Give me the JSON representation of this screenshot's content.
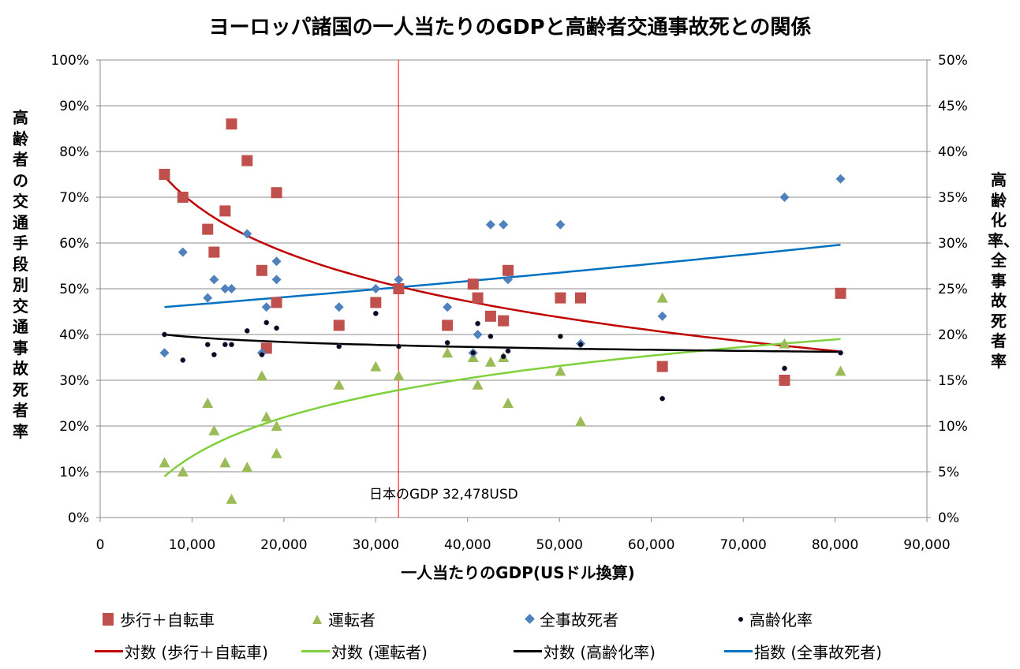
{
  "chart_data": {
    "type": "scatter",
    "title": "ヨーロッパ諸国の一人当たりのGDPと高齢者交通事故死との関係",
    "xlabel": "一人当たりのGDP(USドル換算)",
    "ylabel_left": "高齢者の交通手段別交通事故死者率",
    "ylabel_right": "高齢化率、全事故死者率",
    "xlim": [
      0,
      90000
    ],
    "ylim_left": [
      0,
      1.0
    ],
    "ylim_right": [
      0,
      0.5
    ],
    "x_ticks": [
      "0",
      "10,000",
      "20,000",
      "30,000",
      "40,000",
      "50,000",
      "60,000",
      "70,000",
      "80,000",
      "90,000"
    ],
    "x_tick_values": [
      0,
      10000,
      20000,
      30000,
      40000,
      50000,
      60000,
      70000,
      80000,
      90000
    ],
    "y_ticks_left": [
      "0%",
      "10%",
      "20%",
      "30%",
      "40%",
      "50%",
      "60%",
      "70%",
      "80%",
      "90%",
      "100%"
    ],
    "y_ticks_right": [
      "0%",
      "5%",
      "10%",
      "15%",
      "20%",
      "25%",
      "30%",
      "35%",
      "40%",
      "45%",
      "50%"
    ],
    "grid": true,
    "legend_position": "bottom",
    "reference_line": {
      "x": 32478,
      "color": "#ff0000",
      "label": "日本のGDP  32,478USD"
    },
    "series": [
      {
        "name": "歩行＋自転車",
        "axis": "left",
        "marker": "square",
        "color": "#c0504d",
        "points": [
          [
            7000,
            0.75
          ],
          [
            9000,
            0.7
          ],
          [
            11700,
            0.63
          ],
          [
            12400,
            0.58
          ],
          [
            13600,
            0.67
          ],
          [
            14300,
            0.86
          ],
          [
            16000,
            0.78
          ],
          [
            17600,
            0.54
          ],
          [
            18100,
            0.37
          ],
          [
            19200,
            0.47
          ],
          [
            19200,
            0.71
          ],
          [
            26000,
            0.42
          ],
          [
            30000,
            0.47
          ],
          [
            32500,
            0.5
          ],
          [
            37800,
            0.42
          ],
          [
            40600,
            0.51
          ],
          [
            41100,
            0.48
          ],
          [
            42500,
            0.44
          ],
          [
            43900,
            0.43
          ],
          [
            44400,
            0.54
          ],
          [
            50100,
            0.48
          ],
          [
            52300,
            0.48
          ],
          [
            61200,
            0.33
          ],
          [
            74500,
            0.3
          ],
          [
            80600,
            0.49
          ]
        ]
      },
      {
        "name": "運転者",
        "axis": "left",
        "marker": "triangle",
        "color": "#9bbb59",
        "points": [
          [
            7000,
            0.12
          ],
          [
            9000,
            0.1
          ],
          [
            11700,
            0.25
          ],
          [
            12400,
            0.19
          ],
          [
            13600,
            0.12
          ],
          [
            14300,
            0.04
          ],
          [
            16000,
            0.11
          ],
          [
            17600,
            0.31
          ],
          [
            18100,
            0.22
          ],
          [
            19200,
            0.2
          ],
          [
            19200,
            0.14
          ],
          [
            26000,
            0.29
          ],
          [
            30000,
            0.33
          ],
          [
            32500,
            0.31
          ],
          [
            37800,
            0.36
          ],
          [
            40600,
            0.35
          ],
          [
            41100,
            0.29
          ],
          [
            42500,
            0.34
          ],
          [
            43900,
            0.35
          ],
          [
            44400,
            0.25
          ],
          [
            50100,
            0.32
          ],
          [
            52300,
            0.21
          ],
          [
            61200,
            0.48
          ],
          [
            74500,
            0.38
          ],
          [
            80600,
            0.32
          ]
        ]
      },
      {
        "name": "全事故死者",
        "axis": "right",
        "marker": "diamond",
        "color": "#4f81bd",
        "points": [
          [
            7000,
            0.18
          ],
          [
            9000,
            0.29
          ],
          [
            11700,
            0.24
          ],
          [
            12400,
            0.26
          ],
          [
            13600,
            0.25
          ],
          [
            14300,
            0.25
          ],
          [
            16000,
            0.31
          ],
          [
            17600,
            0.18
          ],
          [
            18100,
            0.23
          ],
          [
            19200,
            0.26
          ],
          [
            19200,
            0.28
          ],
          [
            26000,
            0.23
          ],
          [
            30000,
            0.25
          ],
          [
            32500,
            0.26
          ],
          [
            37800,
            0.23
          ],
          [
            40600,
            0.18
          ],
          [
            41100,
            0.2
          ],
          [
            42500,
            0.32
          ],
          [
            43900,
            0.32
          ],
          [
            44400,
            0.26
          ],
          [
            50100,
            0.32
          ],
          [
            52300,
            0.19
          ],
          [
            61200,
            0.22
          ],
          [
            74500,
            0.35
          ],
          [
            80600,
            0.37
          ]
        ]
      },
      {
        "name": "高齢化率",
        "axis": "right",
        "marker": "dot",
        "color": "#0a0a1e",
        "points": [
          [
            7000,
            0.2
          ],
          [
            9000,
            0.172
          ],
          [
            11700,
            0.189
          ],
          [
            12400,
            0.178
          ],
          [
            13600,
            0.189
          ],
          [
            14300,
            0.189
          ],
          [
            16000,
            0.204
          ],
          [
            17600,
            0.178
          ],
          [
            18100,
            0.213
          ],
          [
            19200,
            0.207
          ],
          [
            26000,
            0.187
          ],
          [
            30000,
            0.223
          ],
          [
            32500,
            0.187
          ],
          [
            37800,
            0.191
          ],
          [
            40600,
            0.18
          ],
          [
            41100,
            0.212
          ],
          [
            42500,
            0.198
          ],
          [
            43900,
            0.176
          ],
          [
            44400,
            0.182
          ],
          [
            50100,
            0.198
          ],
          [
            52300,
            0.189
          ],
          [
            61200,
            0.13
          ],
          [
            74500,
            0.163
          ],
          [
            80600,
            0.18
          ]
        ]
      }
    ],
    "trendlines": [
      {
        "name": "対数 (歩行＋自転車)",
        "type": "log",
        "axis": "left",
        "color": "#c00000",
        "x_range": [
          7000,
          80600
        ],
        "y_start": 0.745,
        "y_end": 0.363
      },
      {
        "name": "対数 (運転者)",
        "type": "log",
        "axis": "left",
        "color": "#7fd13b",
        "x_range": [
          7000,
          80600
        ],
        "y_start": 0.09,
        "y_end": 0.39
      },
      {
        "name": "対数 (高齢化率)",
        "type": "log",
        "axis": "right",
        "color": "#000000",
        "x_range": [
          7000,
          80600
        ],
        "y_start": 0.2,
        "y_end": 0.181
      },
      {
        "name": "指数 (全事故死者)",
        "type": "exp",
        "axis": "right",
        "color": "#0070c0",
        "x_range": [
          7000,
          80600
        ],
        "y_start": 0.23,
        "y_end": 0.298
      }
    ]
  },
  "legend": {
    "row1": [
      {
        "label": "歩行＋自転車",
        "icon": "square-marker"
      },
      {
        "label": "運転者",
        "icon": "triangle-marker"
      },
      {
        "label": "全事故死者",
        "icon": "diamond-marker"
      },
      {
        "label": "高齢化率",
        "icon": "dot-marker"
      }
    ],
    "row2": [
      {
        "label": "対数 (歩行＋自転車)",
        "icon": "red-line"
      },
      {
        "label": "対数 (運転者)",
        "icon": "green-line"
      },
      {
        "label": "対数 (高齢化率)",
        "icon": "black-line"
      },
      {
        "label": "指数 (全事故死者)",
        "icon": "blue-line"
      }
    ]
  }
}
